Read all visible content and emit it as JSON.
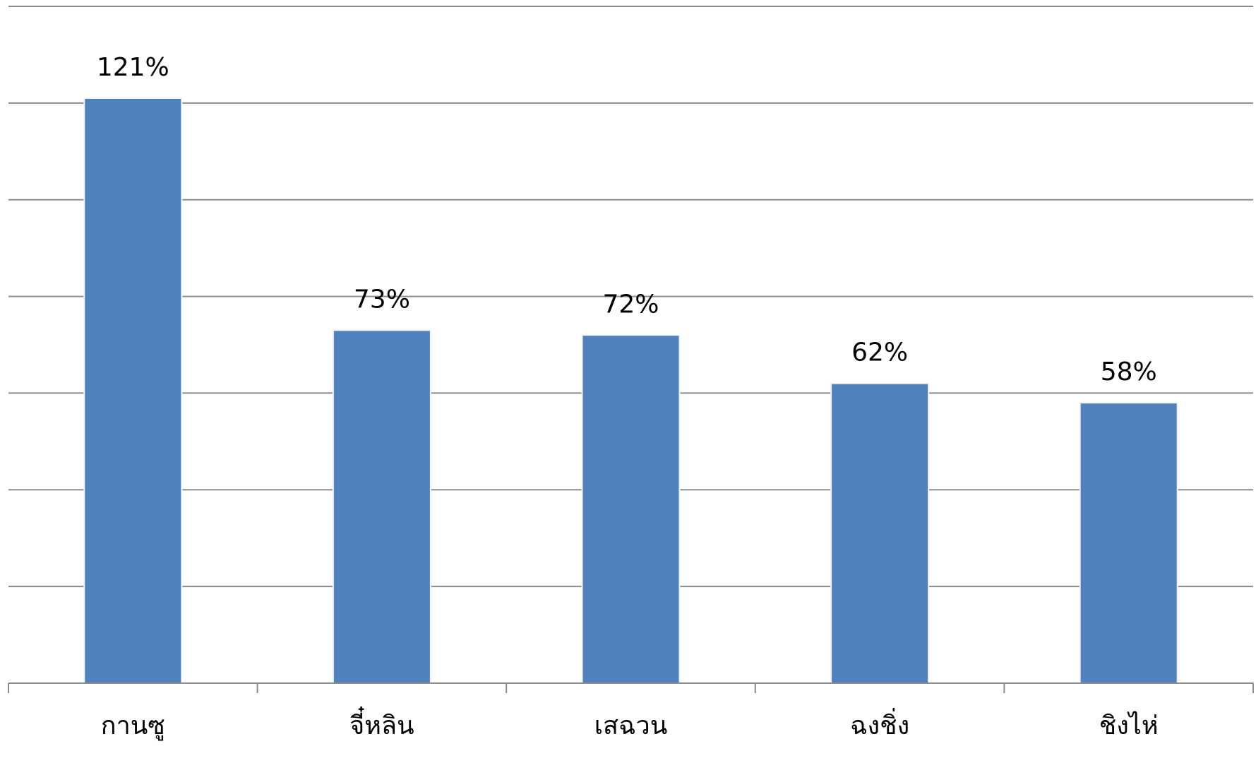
{
  "chart_data": {
    "type": "bar",
    "title": "",
    "xlabel": "",
    "ylabel": "",
    "categories": [
      "กานซู",
      "จี๋หลิน",
      "เสฉวน",
      "ฉงชิ่ง",
      "ชิงไห่"
    ],
    "values": [
      121,
      73,
      72,
      62,
      58
    ],
    "data_labels": [
      "121%",
      "73%",
      "72%",
      "62%",
      "58%"
    ],
    "ylim": [
      0,
      140
    ],
    "y_gridline_step": 20,
    "y_tick_labels_shown": false,
    "grid": true,
    "legend": "none",
    "colors": {
      "bar": "#4F81BD",
      "bar_outline": "#f2f2f2",
      "gridline": "#8c8c8c",
      "text": "#000000"
    }
  }
}
